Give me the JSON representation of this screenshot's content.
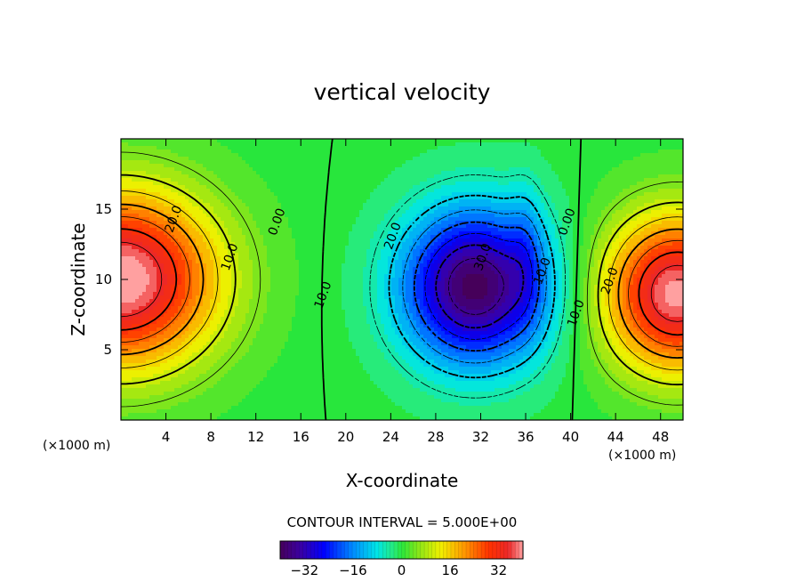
{
  "chart_data": {
    "type": "heatmap",
    "title": "vertical velocity",
    "xlabel": "X-coordinate",
    "ylabel": "Z-coordinate",
    "x_unit": "(×1000 m)",
    "x_unit_right": "(×1000 m)",
    "xlim": [
      0,
      50
    ],
    "ylim": [
      0,
      20
    ],
    "x_ticks": [
      4,
      8,
      12,
      16,
      20,
      24,
      28,
      32,
      36,
      40,
      44,
      48
    ],
    "y_ticks": [
      5,
      10,
      15
    ],
    "colorbar": {
      "range": [
        -40,
        40
      ],
      "ticks": [
        "-32",
        "-16",
        "0",
        "16",
        "32"
      ],
      "tick_values": [
        -32,
        -16,
        0,
        16,
        32
      ]
    },
    "contour_interval_text": "CONTOUR INTERVAL = 5.000E+00",
    "contour_labels": [
      {
        "text": "20.0",
        "x": 5,
        "z": 14.2
      },
      {
        "text": "10.0",
        "x": 10,
        "z": 11.5
      },
      {
        "text": "0.00",
        "x": 14.2,
        "z": 14
      },
      {
        "text": "10.0",
        "x": 18.3,
        "z": 8.8
      },
      {
        "text": "20.0",
        "x": 24.5,
        "z": 13
      },
      {
        "text": "30.0",
        "x": 32.5,
        "z": 11.5
      },
      {
        "text": "10.0",
        "x": 37.8,
        "z": 10.5
      },
      {
        "text": "0.00",
        "x": 40,
        "z": 14
      },
      {
        "text": "10.0",
        "x": 40.8,
        "z": 7.5
      },
      {
        "text": "20.0",
        "x": 43.8,
        "z": 9.8
      }
    ],
    "features": [
      {
        "kind": "max",
        "x": 0.5,
        "z": 10,
        "value": 40
      },
      {
        "kind": "min",
        "x": 32,
        "z": 9,
        "value": -38
      },
      {
        "kind": "max",
        "x": 48.5,
        "z": 9,
        "value": 38
      }
    ]
  }
}
